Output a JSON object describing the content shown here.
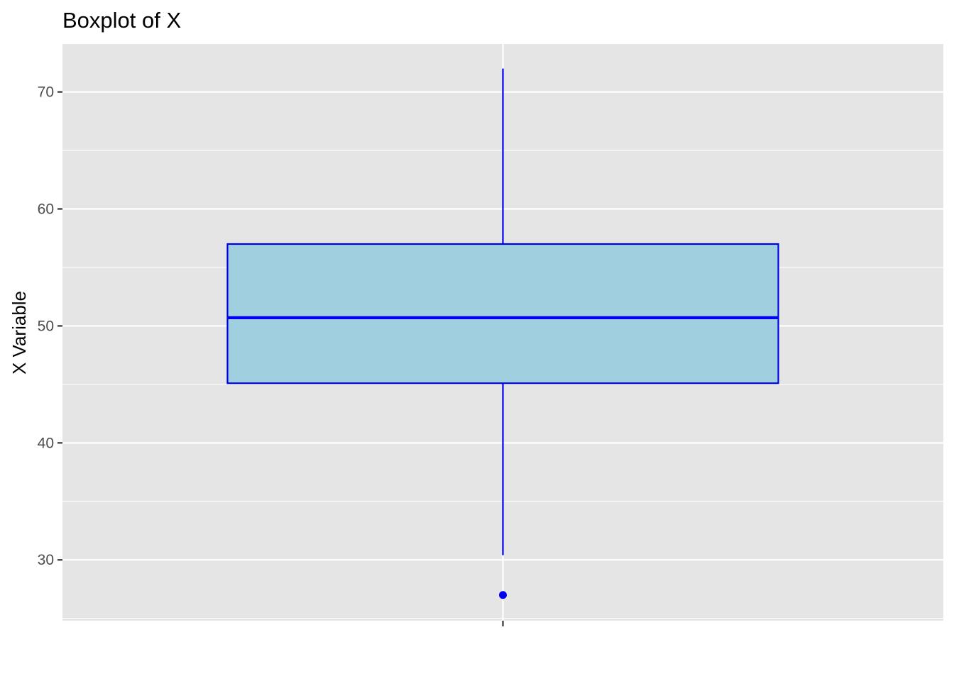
{
  "colors": {
    "panel_background": "#e5e5e5",
    "grid": "#ffffff",
    "box_fill": "#a0cfe0",
    "box_outline": "#0000ee",
    "outlier": "#0000ee",
    "tick_mark": "#333333"
  },
  "chart_data": {
    "type": "boxplot",
    "title": "Boxplot of X",
    "xlabel": "",
    "ylabel": "X Variable",
    "ylim": [
      24.8,
      74.1
    ],
    "y_ticks": [
      30,
      40,
      50,
      60,
      70
    ],
    "y_tick_labels": [
      "30",
      "40",
      "50",
      "60",
      "70"
    ],
    "grid": true,
    "boxes": [
      {
        "whisker_low": 30.4,
        "q1": 45.1,
        "median": 50.7,
        "q3": 57.0,
        "whisker_high": 72.0,
        "outliers": [
          27.0
        ]
      }
    ]
  }
}
